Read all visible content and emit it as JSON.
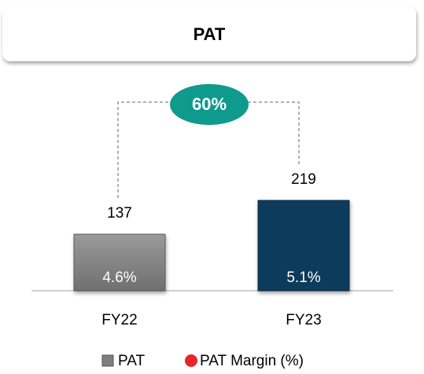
{
  "chart_data": {
    "type": "bar",
    "title": "PAT",
    "categories": [
      "FY22",
      "FY23"
    ],
    "series": [
      {
        "name": "PAT",
        "color": "#7f7f7f",
        "bar_colors": [
          "#858585",
          "#0e3a5c"
        ],
        "values": [
          137,
          219
        ]
      },
      {
        "name": "PAT Margin (%)",
        "color": "#e8262a",
        "values": [
          4.6,
          5.1
        ],
        "value_labels": [
          "4.6%",
          "5.1%"
        ]
      }
    ],
    "annotation": {
      "value": 60,
      "label": "60%",
      "color": "#0f9a8e"
    }
  }
}
